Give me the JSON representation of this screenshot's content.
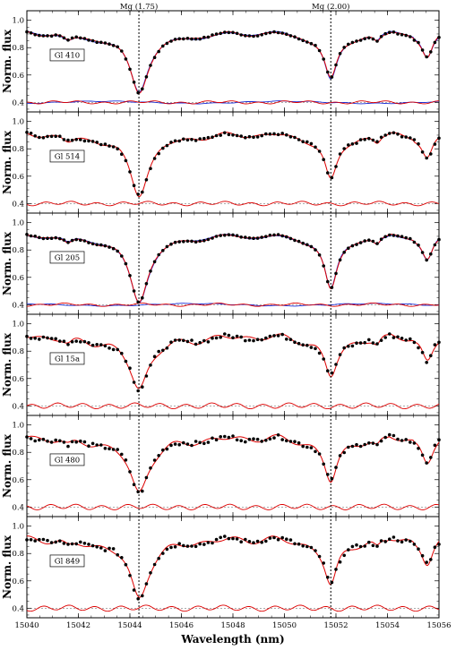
{
  "chart_data": {
    "type": "line",
    "xlabel": "Wavelength (nm)",
    "ylabel": "Norm. flux",
    "xlim": [
      15040,
      15056
    ],
    "ylim": [
      0.33,
      1.07
    ],
    "x_ticks": [
      15040,
      15042,
      15044,
      15046,
      15048,
      15050,
      15052,
      15054,
      15056
    ],
    "y_ticks": [
      0.4,
      0.6,
      0.8,
      1.0
    ],
    "y_tick_labels": [
      "0.4",
      "0.6",
      "0.8",
      "1.0"
    ],
    "residual_offset": 0.4,
    "line_markers": [
      {
        "label": "Mg (1.75)",
        "x": 15044.35
      },
      {
        "label": "Mg (2.00)",
        "x": 15051.8
      }
    ],
    "colors": {
      "observed": "#000000",
      "model_red": "#dd0000",
      "model_blue": "#1a2ed6",
      "residual_ref": "#777777"
    },
    "panels": [
      {
        "label": "Gl 410",
        "depth1": 0.38,
        "depth2": 0.31,
        "noise": 0.004,
        "model_blue": true,
        "blue_sign": -1
      },
      {
        "label": "Gl 514",
        "depth1": 0.39,
        "depth2": 0.31,
        "noise": 0.008,
        "model_blue": false
      },
      {
        "label": "Gl 205",
        "depth1": 0.43,
        "depth2": 0.37,
        "noise": 0.003,
        "model_blue": true,
        "blue_sign": 1
      },
      {
        "label": "Gl 15a",
        "depth1": 0.33,
        "depth2": 0.26,
        "noise": 0.014,
        "model_blue": false
      },
      {
        "label": "Gl 480",
        "depth1": 0.35,
        "depth2": 0.29,
        "noise": 0.014,
        "model_blue": false
      },
      {
        "label": "Gl 849",
        "depth1": 0.38,
        "depth2": 0.31,
        "noise": 0.014,
        "model_blue": false
      }
    ]
  }
}
